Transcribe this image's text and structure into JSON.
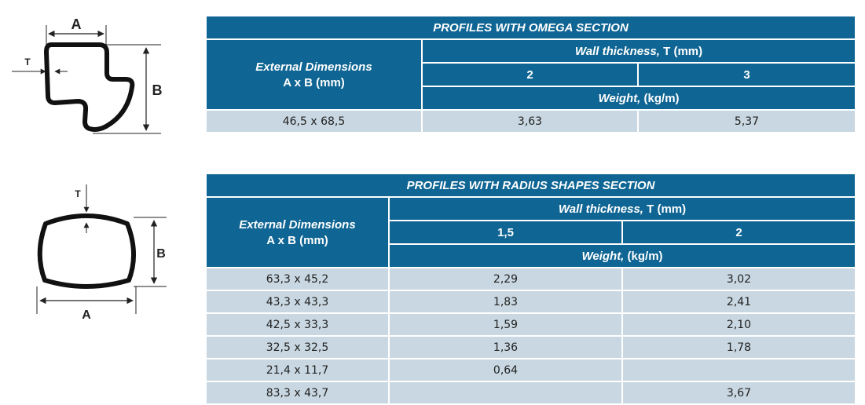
{
  "omega": {
    "diagram": {
      "label_a": "A",
      "label_b": "B",
      "label_t": "T"
    },
    "title": "PROFILES WITH OMEGA SECTION",
    "ext_dim_line1": "External Dimensions",
    "ext_dim_line2": "A x B (mm)",
    "wall_thickness_em": "Wall thickness,",
    "wall_thickness_rest": " T (mm)",
    "thickness_cols": [
      "2",
      "3"
    ],
    "weight_em": "Weight,",
    "weight_rest": " (kg/m)",
    "rows": [
      {
        "dim": "46,5 x 68,5",
        "w1": "3,63",
        "w2": "5,37"
      }
    ]
  },
  "radius": {
    "diagram": {
      "label_a": "A",
      "label_b": "B",
      "label_t": "T"
    },
    "title": "PROFILES WITH RADIUS SHAPES SECTION",
    "ext_dim_line1": "External Dimensions",
    "ext_dim_line2": "A x B (mm)",
    "wall_thickness_em": "Wall thickness,",
    "wall_thickness_rest": " T (mm)",
    "thickness_cols": [
      "1,5",
      "2"
    ],
    "weight_em": "Weight,",
    "weight_rest": " (kg/m)",
    "rows": [
      {
        "dim": "63,3 x 45,2",
        "w1": "2,29",
        "w2": "3,02"
      },
      {
        "dim": "43,3 x 43,3",
        "w1": "1,83",
        "w2": "2,41"
      },
      {
        "dim": "42,5 x 33,3",
        "w1": "1,59",
        "w2": "2,10"
      },
      {
        "dim": "32,5 x 32,5",
        "w1": "1,36",
        "w2": "1,78"
      },
      {
        "dim": "21,4 x 11,7",
        "w1": "0,64",
        "w2": ""
      },
      {
        "dim": "83,3 x 43,7",
        "w1": "",
        "w2": "3,67"
      }
    ]
  }
}
